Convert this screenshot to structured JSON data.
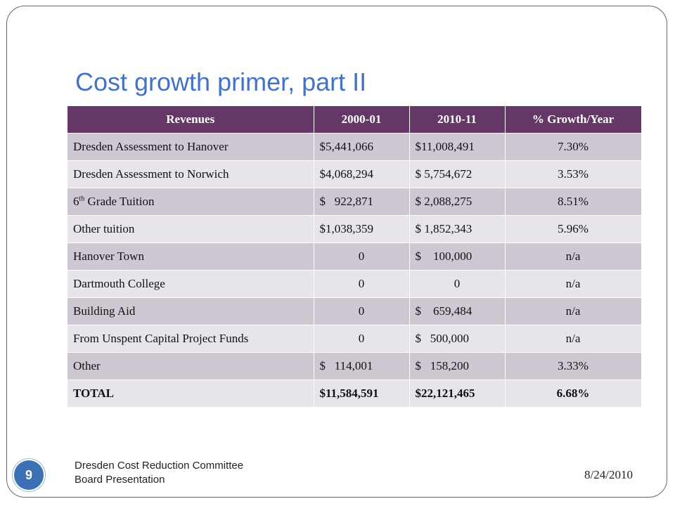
{
  "slide": {
    "title": "Cost growth primer, part II",
    "slide_number": "9",
    "footer_line1": "Dresden Cost Reduction Committee",
    "footer_line2": "Board Presentation",
    "date": "8/24/2010"
  },
  "table": {
    "headers": [
      "Revenues",
      "2000-01",
      "2010-11",
      "% Growth/Year"
    ],
    "rows": [
      {
        "name": "Dresden Assessment to Hanover",
        "y2000": "$5,441,066",
        "y2010": "$11,008,491",
        "growth": "7.30%"
      },
      {
        "name": "Dresden Assessment to Norwich",
        "y2000": "$4,068,294",
        "y2010": "$ 5,754,672",
        "growth": "3.53%"
      },
      {
        "name_prefix": "6",
        "name_sup": "th",
        "name": " Grade Tuition",
        "y2000": "$   922,871",
        "y2010": "$ 2,088,275",
        "growth": "8.51%"
      },
      {
        "name": "Other tuition",
        "y2000": "$1,038,359",
        "y2010": "$ 1,852,343",
        "growth": "5.96%"
      },
      {
        "name": "Hanover Town",
        "y2000": "0",
        "y2010": "$    100,000",
        "growth": "n/a"
      },
      {
        "name": "Dartmouth College",
        "y2000": "0",
        "y2010": "0",
        "growth": "n/a"
      },
      {
        "name": "Building Aid",
        "y2000": "0",
        "y2010": "$    659,484",
        "growth": "n/a"
      },
      {
        "name": "From Unspent Capital Project Funds",
        "y2000": "0",
        "y2010": "$   500,000",
        "growth": "n/a"
      },
      {
        "name": "Other",
        "y2000": "$   114,001",
        "y2010": "$   158,200",
        "growth": "3.33%"
      },
      {
        "name": "TOTAL",
        "y2000": "$11,584,591",
        "y2010": "$22,121,465",
        "growth": "6.68%"
      }
    ]
  },
  "colors": {
    "title": "#4472c4",
    "header_bg": "#653766",
    "row_odd": "#cfc8d2",
    "row_even": "#e8e5ea",
    "badge": "#3d6fb5"
  }
}
